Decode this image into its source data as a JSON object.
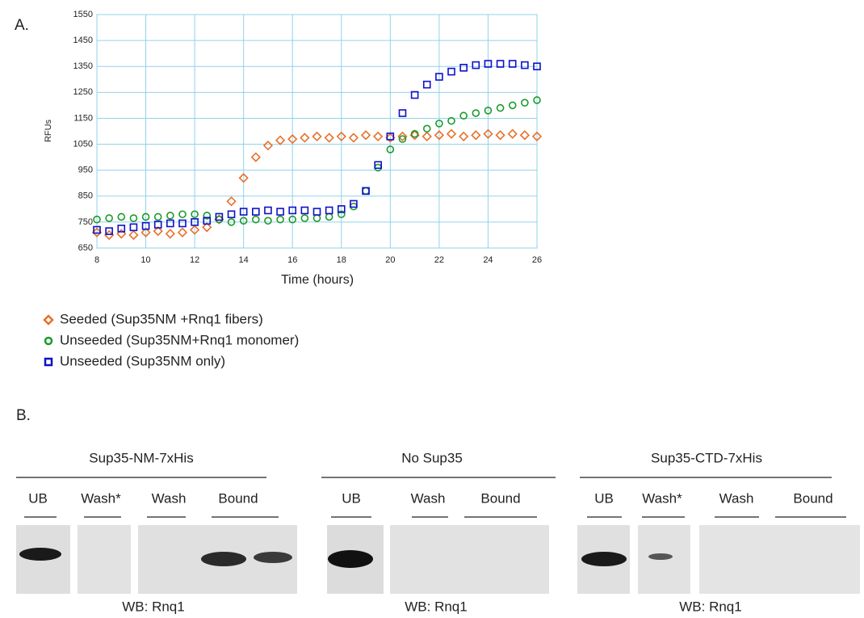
{
  "chart_data": {
    "type": "scatter",
    "ylabel": "RFUs",
    "xlabel": "Time (hours)",
    "xlim": [
      8,
      26
    ],
    "xticks": [
      8,
      10,
      12,
      14,
      16,
      18,
      20,
      22,
      24,
      26
    ],
    "ylim": [
      650,
      1550
    ],
    "yticks": [
      650,
      750,
      850,
      950,
      1050,
      1150,
      1250,
      1350,
      1450,
      1550
    ],
    "grid": true,
    "x": [
      8,
      8.5,
      9,
      9.5,
      10,
      10.5,
      11,
      11.5,
      12,
      12.5,
      13,
      13.5,
      14,
      14.5,
      15,
      15.5,
      16,
      16.5,
      17,
      17.5,
      18,
      18.5,
      19,
      19.5,
      20,
      20.5,
      21,
      21.5,
      22,
      22.5,
      23,
      23.5,
      24,
      24.5,
      25,
      25.5,
      26
    ],
    "series": [
      {
        "name": "Seeded (Sup35NM +Rnq1 fibers)",
        "color": "#e8702a",
        "marker": "diamond",
        "values": [
          710,
          700,
          705,
          700,
          710,
          715,
          705,
          710,
          720,
          730,
          760,
          830,
          920,
          1000,
          1045,
          1065,
          1070,
          1075,
          1080,
          1075,
          1080,
          1075,
          1085,
          1080,
          1075,
          1080,
          1085,
          1080,
          1085,
          1090,
          1080,
          1085,
          1090,
          1085,
          1090,
          1085,
          1080
        ]
      },
      {
        "name": "Unseeded (Sup35NM+Rnq1 monomer)",
        "color": "#1a9a2a",
        "marker": "circle",
        "values": [
          760,
          765,
          770,
          765,
          770,
          770,
          775,
          780,
          780,
          775,
          760,
          750,
          755,
          760,
          755,
          760,
          760,
          765,
          765,
          770,
          780,
          810,
          870,
          960,
          1030,
          1070,
          1090,
          1110,
          1130,
          1140,
          1160,
          1170,
          1180,
          1190,
          1200,
          1210,
          1220
        ]
      },
      {
        "name": "Unseeded (Sup35NM only)",
        "color": "#1010c8",
        "marker": "square",
        "values": [
          720,
          715,
          725,
          730,
          735,
          740,
          745,
          745,
          750,
          755,
          770,
          780,
          790,
          790,
          795,
          790,
          795,
          795,
          790,
          795,
          800,
          820,
          870,
          970,
          1080,
          1170,
          1240,
          1280,
          1310,
          1330,
          1345,
          1355,
          1360,
          1360,
          1360,
          1355,
          1350
        ]
      }
    ]
  },
  "panel_a_label": "A.",
  "panel_b": {
    "label": "B.",
    "groups": [
      {
        "title": "Sup35-NM-7xHis",
        "lanes": [
          "UB",
          "Wash*",
          "Wash",
          "Bound"
        ],
        "footer": "WB: Rnq1"
      },
      {
        "title": "No Sup35",
        "lanes": [
          "UB",
          "Wash",
          "Bound"
        ],
        "footer": "WB: Rnq1"
      },
      {
        "title": "Sup35-CTD-7xHis",
        "lanes": [
          "UB",
          "Wash*",
          "Wash",
          "Bound"
        ],
        "footer": "WB: Rnq1"
      }
    ]
  }
}
